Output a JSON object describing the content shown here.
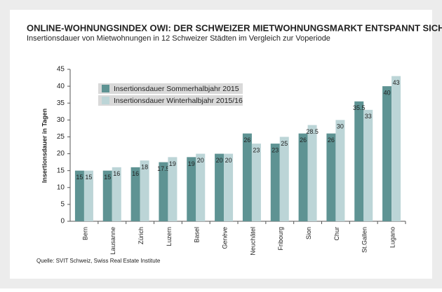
{
  "chart_data": {
    "type": "bar",
    "title": "ONLINE-WOHNUNGSINDEX OWI: DER SCHWEIZER MIETWOHNUNGSMARKT ENTSPANNT SICH",
    "subtitle": "Insertionsdauer von Mietwohnungen in 12 Schweizer Städten im Vergleich zur Voperiode",
    "y_label": "Insertionsdauer in Tagen",
    "source": "Quelle: SVIT Schweiz, Swiss Real Estate Institute",
    "categories": [
      "Bern",
      "Lausanne",
      "Zürich",
      "Luzern",
      "Basel",
      "Genève",
      "Neuchâtel",
      "Fribourg",
      "Sion",
      "Chur",
      "St.Gallen",
      "Lugano"
    ],
    "series": [
      {
        "name": "Insertionsdauer Sommerhalbjahr 2015",
        "color": "#5e9393",
        "values": [
          15,
          15,
          16,
          17.5,
          19,
          20,
          26,
          23,
          26,
          26,
          35.5,
          40
        ]
      },
      {
        "name": "Insertionsdauer Winterhalbjahr 2015/16",
        "color": "#bcd5d7",
        "values": [
          15,
          16,
          18,
          19,
          20,
          20,
          23,
          25,
          28.5,
          30,
          33,
          43
        ]
      }
    ],
    "ylim": [
      0,
      45
    ],
    "yticks": [
      0,
      5,
      10,
      15,
      20,
      25,
      30,
      35,
      40,
      45
    ],
    "grid": false
  }
}
